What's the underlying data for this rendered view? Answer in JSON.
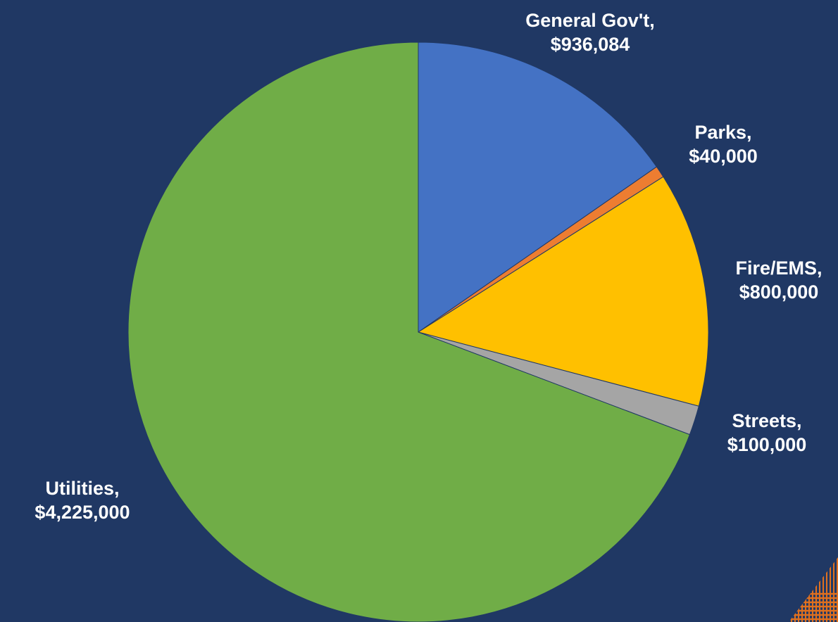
{
  "chart_data": {
    "type": "pie",
    "categories": [
      "General Gov't",
      "Parks",
      "Fire/EMS",
      "Streets",
      "Utilities"
    ],
    "values": [
      936084,
      40000,
      800000,
      100000,
      4225000
    ],
    "value_labels": [
      "$936,084",
      "$40,000",
      "$800,000",
      "$100,000",
      "$4,225,000"
    ],
    "colors": [
      "#4472C4",
      "#ED7D31",
      "#FFC000",
      "#A5A5A5",
      "#70AD47"
    ],
    "start_angle_deg": 0,
    "direction": "clockwise",
    "legend": "none",
    "data_labels": "outside"
  },
  "theme": {
    "background": "#203864",
    "label_color": "#FFFFFF",
    "slice_border": "#203864",
    "accent_stripes": "#E0701F"
  }
}
